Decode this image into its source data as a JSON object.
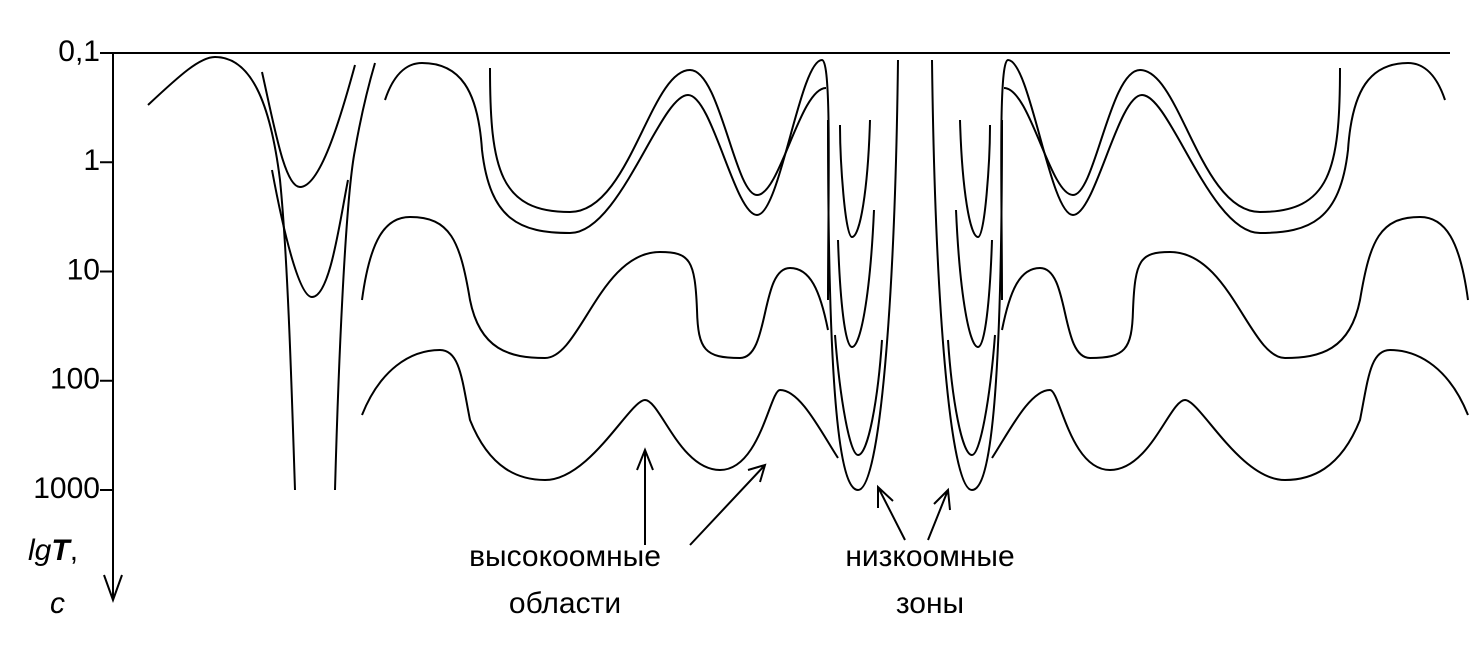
{
  "axis": {
    "ticks": [
      "0,1",
      "1",
      "10",
      "100",
      "1000"
    ],
    "label": {
      "lg": "lg",
      "T": "T",
      "sep": ",",
      "unit": "c"
    }
  },
  "annotations": {
    "high": [
      "высокоомные",
      "области"
    ],
    "low": [
      "низкоомные",
      "зоны"
    ]
  }
}
